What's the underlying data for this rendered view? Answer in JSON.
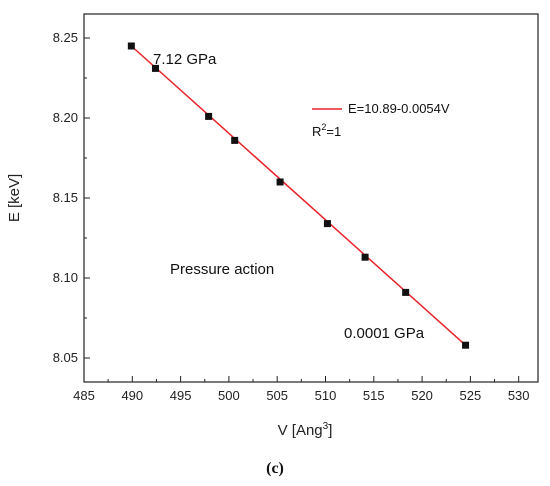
{
  "chart_data": {
    "type": "scatter",
    "xlabel": "V [Ang",
    "xlabel_sup": "3",
    "xlabel_close": "]",
    "ylabel": "E [keV]",
    "xlim": [
      485,
      532
    ],
    "ylim": [
      8.035,
      8.265
    ],
    "x_ticks": [
      485,
      490,
      495,
      500,
      505,
      510,
      515,
      520,
      525,
      530
    ],
    "y_ticks": [
      8.05,
      8.1,
      8.15,
      8.2,
      8.25
    ],
    "x_tick_labels": [
      "485",
      "490",
      "495",
      "500",
      "505",
      "510",
      "515",
      "520",
      "525",
      "530"
    ],
    "y_tick_labels": [
      "8.05",
      "8.10",
      "8.15",
      "8.20",
      "8.25"
    ],
    "points": [
      {
        "x": 489.9,
        "y": 8.245
      },
      {
        "x": 492.4,
        "y": 8.231
      },
      {
        "x": 497.9,
        "y": 8.201
      },
      {
        "x": 500.6,
        "y": 8.186
      },
      {
        "x": 505.3,
        "y": 8.16
      },
      {
        "x": 510.2,
        "y": 8.134
      },
      {
        "x": 514.1,
        "y": 8.113
      },
      {
        "x": 518.3,
        "y": 8.091
      },
      {
        "x": 524.5,
        "y": 8.058
      }
    ],
    "fit": {
      "intercept": 10.89,
      "slope": -0.0054,
      "x_range": [
        489.9,
        524.5
      ],
      "color": "#e8232a",
      "label": "E=10.89-0.0054V",
      "r2_label_base": "R",
      "r2_label_sup": "2",
      "r2_label_rest": "=1"
    },
    "marker_color": "#111111",
    "annotations": {
      "top_point": "7.12 GPa",
      "bottom_point": "0.0001 GPa",
      "middle": "Pressure action"
    },
    "legend_position": "upper-right-inside"
  },
  "panel_label": "(c)"
}
